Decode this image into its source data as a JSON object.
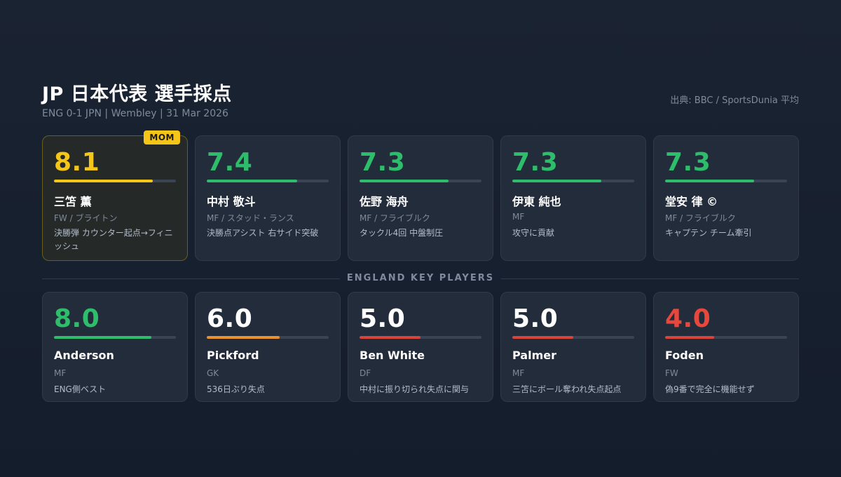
{
  "header": {
    "title": "JP 日本代表 選手採点",
    "subtitle": "ENG 0-1 JPN | Wembley | 31 Mar 2026",
    "source": "出典: BBC / SportsDunia 平均"
  },
  "divider": {
    "label": "ENGLAND KEY PLAYERS"
  },
  "rating_scale_max": 10,
  "japan_players": [
    {
      "score": "8.1",
      "rating": 8.1,
      "name": "三笘 薫",
      "position": "FW / ブライトン",
      "note": "決勝弾 カウンター起点→フィニッシュ",
      "color": "#f5c518",
      "mom": true,
      "badge": "MOM"
    },
    {
      "score": "7.4",
      "rating": 7.4,
      "name": "中村 敬斗",
      "position": "MF / スタッド・ランス",
      "note": "決勝点アシスト 右サイド突破",
      "color": "#2ebd6b"
    },
    {
      "score": "7.3",
      "rating": 7.3,
      "name": "佐野 海舟",
      "position": "MF / フライブルク",
      "note": "タックル4回 中盤制圧",
      "color": "#2ebd6b"
    },
    {
      "score": "7.3",
      "rating": 7.3,
      "name": "伊東 純也",
      "position": "MF",
      "note": "攻守に貢献",
      "color": "#2ebd6b"
    },
    {
      "score": "7.3",
      "rating": 7.3,
      "name": "堂安 律 ©",
      "position": "MF / フライブルク",
      "note": "キャプテン チーム牽引",
      "color": "#2ebd6b"
    }
  ],
  "england_players": [
    {
      "score": "8.0",
      "rating": 8.0,
      "name": "Anderson",
      "position": "MF",
      "note": "ENG側ベスト",
      "color": "#2ebd6b",
      "score_color": "#2ebd6b"
    },
    {
      "score": "6.0",
      "rating": 6.0,
      "name": "Pickford",
      "position": "GK",
      "note": "536日ぶり失点",
      "color": "#e8912d",
      "score_color": "#ffffff"
    },
    {
      "score": "5.0",
      "rating": 5.0,
      "name": "Ben White",
      "position": "DF",
      "note": "中村に振り切られ失点に関与",
      "color": "#d9443a",
      "score_color": "#ffffff"
    },
    {
      "score": "5.0",
      "rating": 5.0,
      "name": "Palmer",
      "position": "MF",
      "note": "三笘にボール奪われ失点起点",
      "color": "#d9443a",
      "score_color": "#ffffff"
    },
    {
      "score": "4.0",
      "rating": 4.0,
      "name": "Foden",
      "position": "FW",
      "note": "偽9番で完全に機能せず",
      "color": "#d9443a",
      "score_color": "#e8473c"
    }
  ]
}
